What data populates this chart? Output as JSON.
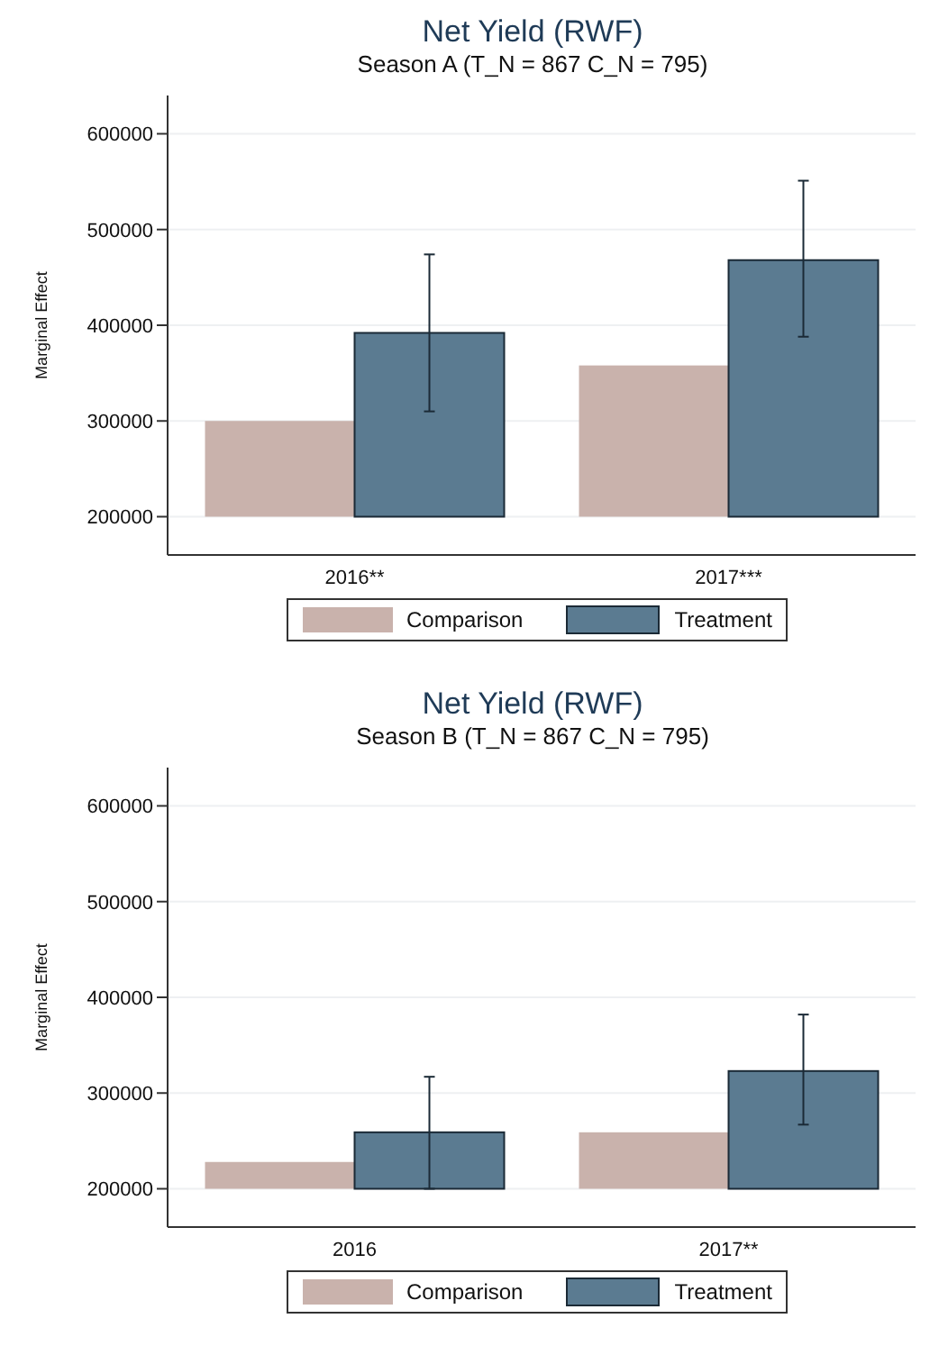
{
  "chart_data": [
    {
      "type": "bar",
      "title": "Net Yield (RWF)",
      "subtitle": "Season A (T_N = 867 C_N = 795)",
      "ylabel": "Marginal Effect",
      "categories": [
        "2016**",
        "2017***"
      ],
      "ylim": [
        160000,
        640000
      ],
      "yticks": [
        200000,
        300000,
        400000,
        500000,
        600000
      ],
      "grid": "y",
      "legend": "bottom",
      "series": [
        {
          "name": "Comparison",
          "color": "#c9b2ac",
          "values": [
            100000,
            158000
          ],
          "base": [
            200000,
            200000
          ]
        },
        {
          "name": "Treatment",
          "color": "#5b7b91",
          "values": [
            192000,
            268000
          ],
          "base": [
            200000,
            200000
          ],
          "errors": [
            [
              310000,
              474000
            ],
            [
              388000,
              551000
            ]
          ]
        }
      ]
    },
    {
      "type": "bar",
      "title": "Net Yield (RWF)",
      "subtitle": "Season B (T_N = 867 C_N = 795)",
      "ylabel": "Marginal Effect",
      "categories": [
        "2016",
        "2017**"
      ],
      "ylim": [
        160000,
        640000
      ],
      "yticks": [
        200000,
        300000,
        400000,
        500000,
        600000
      ],
      "grid": "y",
      "legend": "bottom",
      "series": [
        {
          "name": "Comparison",
          "color": "#c9b2ac",
          "values": [
            28000,
            59000
          ],
          "base": [
            200000,
            200000
          ]
        },
        {
          "name": "Treatment",
          "color": "#5b7b91",
          "values": [
            59000,
            123000
          ],
          "base": [
            200000,
            200000
          ],
          "errors": [
            [
              200000,
              317000
            ],
            [
              267000,
              382000
            ]
          ]
        }
      ]
    }
  ]
}
